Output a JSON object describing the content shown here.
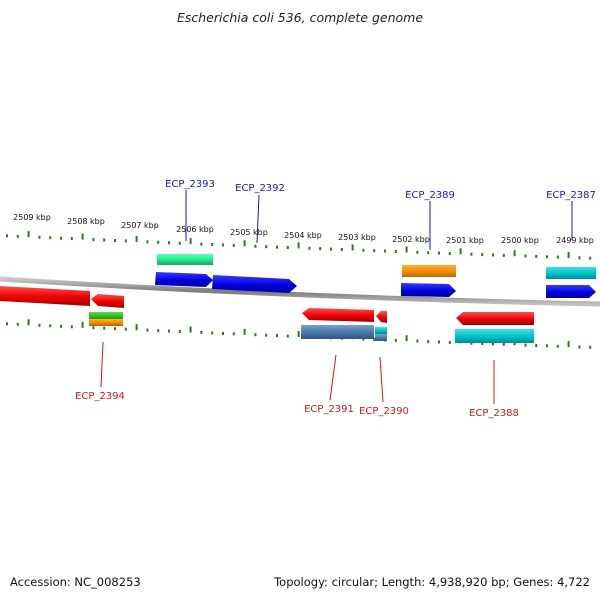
{
  "title": "Escherichia coli 536, complete genome",
  "footer": {
    "accession": "Accession: NC_008253",
    "topology": "Topology: circular; Length: 4,938,920 bp; Genes: 4,722"
  },
  "colors": {
    "backbone": "#8a8a8a",
    "tick": "#2a7a1a",
    "top_label": "#1a1ab8",
    "bottom_label": "#cc1a1a"
  },
  "kbp_labels": [
    "2509 kbp",
    "2508 kbp",
    "2507 kbp",
    "2506 kbp",
    "2505 kbp",
    "2504 kbp",
    "2503 kbp",
    "2502 kbp",
    "2501 kbp",
    "2500 kbp",
    "2499 kbp"
  ],
  "top_labels": [
    "ECP_2393",
    "ECP_2392",
    "ECP_2389",
    "ECP_2387"
  ],
  "bottom_labels": [
    "ECP_2394",
    "ECP_2391",
    "ECP_2390",
    "ECP_2388"
  ]
}
